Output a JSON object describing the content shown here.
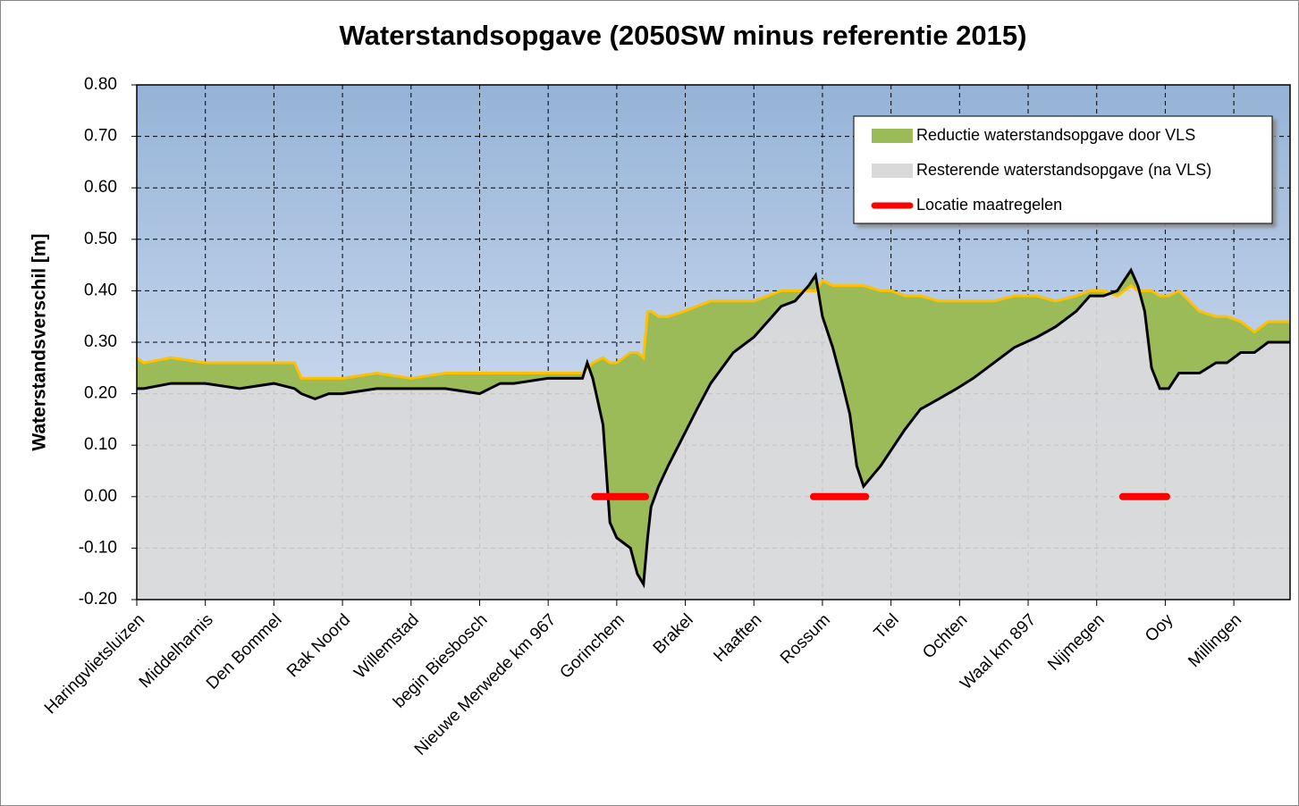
{
  "chart_data": {
    "type": "area",
    "title": "Waterstandsopgave (2050SW minus referentie 2015)",
    "y_label": "Waterstandsverschil [m]",
    "xlim": [
      0,
      16.82
    ],
    "xticks": [
      {
        "value": 0,
        "label": "Haringvlietsluizen"
      },
      {
        "value": 1,
        "label": "Middelharnis"
      },
      {
        "value": 2,
        "label": "Den Bommel"
      },
      {
        "value": 3,
        "label": "Rak Noord"
      },
      {
        "value": 4,
        "label": "Willemstad"
      },
      {
        "value": 5,
        "label": "begin Biesbosch"
      },
      {
        "value": 6,
        "label": "Nieuwe Merwede km 967"
      },
      {
        "value": 7,
        "label": "Gorinchem"
      },
      {
        "value": 8,
        "label": "Brakel"
      },
      {
        "value": 9,
        "label": "Haaften"
      },
      {
        "value": 10,
        "label": "Rossum"
      },
      {
        "value": 11,
        "label": "Tiel"
      },
      {
        "value": 12,
        "label": "Ochten"
      },
      {
        "value": 13,
        "label": "Waal km 897"
      },
      {
        "value": 14,
        "label": "Nijmegen"
      },
      {
        "value": 15,
        "label": "Ooy"
      },
      {
        "value": 16,
        "label": "Millingen"
      }
    ],
    "ylim": [
      -0.2,
      0.8
    ],
    "yticks": [
      {
        "value": -0.2,
        "label": "-0.20"
      },
      {
        "value": -0.1,
        "label": "-0.10"
      },
      {
        "value": 0,
        "label": "0.00"
      },
      {
        "value": 0.1,
        "label": "0.10"
      },
      {
        "value": 0.2,
        "label": "0.20"
      },
      {
        "value": 0.3,
        "label": "0.30"
      },
      {
        "value": 0.4,
        "label": "0.40"
      },
      {
        "value": 0.5,
        "label": "0.50"
      },
      {
        "value": 0.6,
        "label": "0.60"
      },
      {
        "value": 0.7,
        "label": "0.70"
      },
      {
        "value": 0.8,
        "label": "0.80"
      }
    ],
    "grid": true,
    "x": [
      0,
      0.1,
      0.5,
      1.0,
      1.5,
      2.0,
      2.3,
      2.4,
      2.6,
      2.8,
      3.0,
      3.5,
      4.0,
      4.5,
      5.0,
      5.3,
      5.5,
      6.0,
      6.3,
      6.5,
      6.57,
      6.65,
      6.8,
      6.9,
      7.0,
      7.2,
      7.3,
      7.39,
      7.45,
      7.5,
      7.61,
      7.75,
      7.98,
      8.17,
      8.37,
      8.7,
      9.0,
      9.2,
      9.4,
      9.6,
      9.8,
      9.9,
      10.0,
      10.15,
      10.29,
      10.4,
      10.5,
      10.6,
      10.85,
      11.0,
      11.2,
      11.43,
      11.7,
      11.96,
      12.2,
      12.5,
      12.8,
      13.13,
      13.4,
      13.7,
      13.9,
      14.1,
      14.3,
      14.4,
      14.5,
      14.6,
      14.7,
      14.8,
      14.92,
      15.05,
      15.2,
      15.5,
      15.74,
      15.9,
      16.1,
      16.3,
      16.5,
      16.82
    ],
    "series": [
      {
        "name": "Resterende waterstandsopgave (na VLS)",
        "color": "#d9d9d9",
        "line_color": "#000000",
        "values": [
          0.21,
          0.21,
          0.22,
          0.22,
          0.21,
          0.22,
          0.21,
          0.2,
          0.19,
          0.2,
          0.2,
          0.21,
          0.21,
          0.21,
          0.2,
          0.22,
          0.22,
          0.23,
          0.23,
          0.23,
          0.26,
          0.23,
          0.14,
          -0.05,
          -0.08,
          -0.1,
          -0.15,
          -0.17,
          -0.08,
          -0.02,
          0.02,
          0.06,
          0.12,
          0.17,
          0.22,
          0.28,
          0.31,
          0.34,
          0.37,
          0.38,
          0.41,
          0.43,
          0.35,
          0.29,
          0.22,
          0.16,
          0.06,
          0.02,
          0.06,
          0.09,
          0.13,
          0.17,
          0.19,
          0.21,
          0.23,
          0.26,
          0.29,
          0.31,
          0.33,
          0.36,
          0.39,
          0.39,
          0.4,
          0.42,
          0.44,
          0.41,
          0.36,
          0.25,
          0.21,
          0.21,
          0.24,
          0.24,
          0.26,
          0.26,
          0.28,
          0.28,
          0.3,
          0.3
        ]
      },
      {
        "name": "Reductie waterstandsopgave door VLS",
        "color": "#9bbb59",
        "line_color": "#ffc000",
        "values": [
          0.27,
          0.26,
          0.27,
          0.26,
          0.26,
          0.26,
          0.26,
          0.23,
          0.23,
          0.23,
          0.23,
          0.24,
          0.23,
          0.24,
          0.24,
          0.24,
          0.24,
          0.24,
          0.24,
          0.24,
          0.25,
          0.26,
          0.27,
          0.26,
          0.26,
          0.28,
          0.28,
          0.27,
          0.36,
          0.36,
          0.35,
          0.35,
          0.36,
          0.37,
          0.38,
          0.38,
          0.38,
          0.39,
          0.4,
          0.4,
          0.4,
          0.4,
          0.42,
          0.41,
          0.41,
          0.41,
          0.41,
          0.41,
          0.4,
          0.4,
          0.39,
          0.39,
          0.38,
          0.38,
          0.38,
          0.38,
          0.39,
          0.39,
          0.38,
          0.39,
          0.4,
          0.4,
          0.39,
          0.4,
          0.41,
          0.4,
          0.4,
          0.4,
          0.39,
          0.39,
          0.4,
          0.36,
          0.35,
          0.35,
          0.34,
          0.32,
          0.34,
          0.34
        ]
      }
    ],
    "measures": {
      "name": "Locatie maatregelen",
      "color": "#ff0000",
      "y": 0,
      "ranges": [
        [
          6.68,
          7.42
        ],
        [
          9.87,
          10.63
        ],
        [
          14.38,
          15.02
        ]
      ]
    }
  }
}
